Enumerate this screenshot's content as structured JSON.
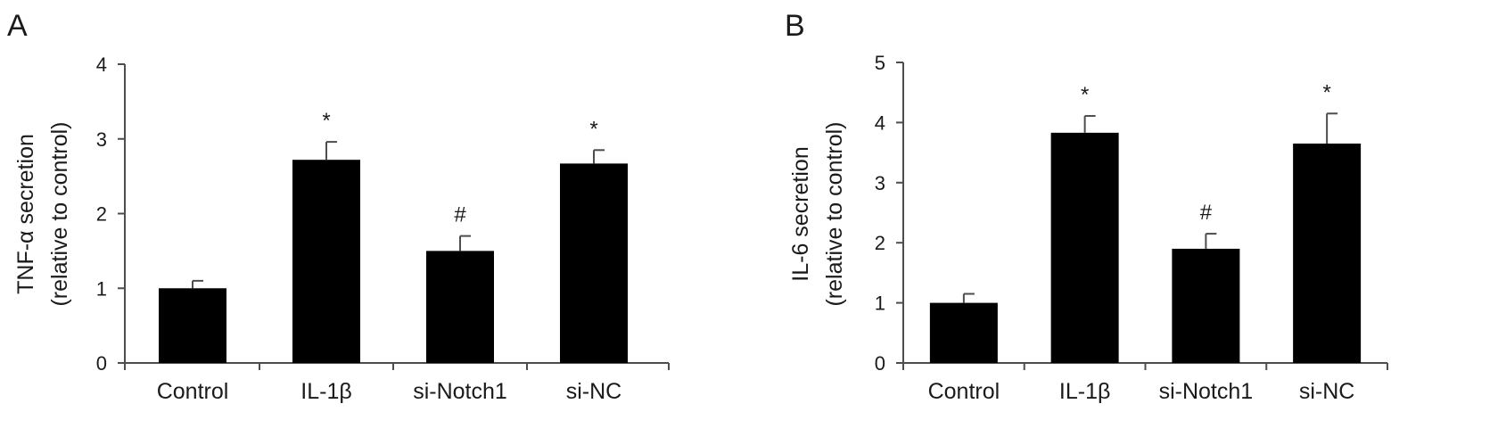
{
  "colors": {
    "bar": "#000000",
    "axis": "#4d4d4d",
    "text": "#1a1a1a"
  },
  "chart_data": [
    {
      "type": "bar",
      "panel": "A",
      "categories": [
        "Control",
        "IL-1β",
        "si-Notch1",
        "si-NC"
      ],
      "values": [
        1.0,
        2.72,
        1.5,
        2.67
      ],
      "errors": [
        0.1,
        0.24,
        0.2,
        0.18
      ],
      "annotations": [
        "",
        "*",
        "#",
        "*"
      ],
      "ylabel_line1": "TNF-α secretion",
      "ylabel_line2": "(relative to control)",
      "ylim": [
        0,
        4
      ],
      "yticks": [
        0,
        1,
        2,
        3,
        4
      ],
      "grid": false
    },
    {
      "type": "bar",
      "panel": "B",
      "categories": [
        "Control",
        "IL-1β",
        "si-Notch1",
        "si-NC"
      ],
      "values": [
        1.0,
        3.83,
        1.9,
        3.65
      ],
      "errors": [
        0.15,
        0.28,
        0.25,
        0.5
      ],
      "annotations": [
        "",
        "*",
        "#",
        "*"
      ],
      "ylabel_line1": "IL-6 secretion",
      "ylabel_line2": "(relative to control)",
      "ylim": [
        0,
        5
      ],
      "yticks": [
        0,
        1,
        2,
        3,
        4,
        5
      ],
      "grid": false
    }
  ]
}
